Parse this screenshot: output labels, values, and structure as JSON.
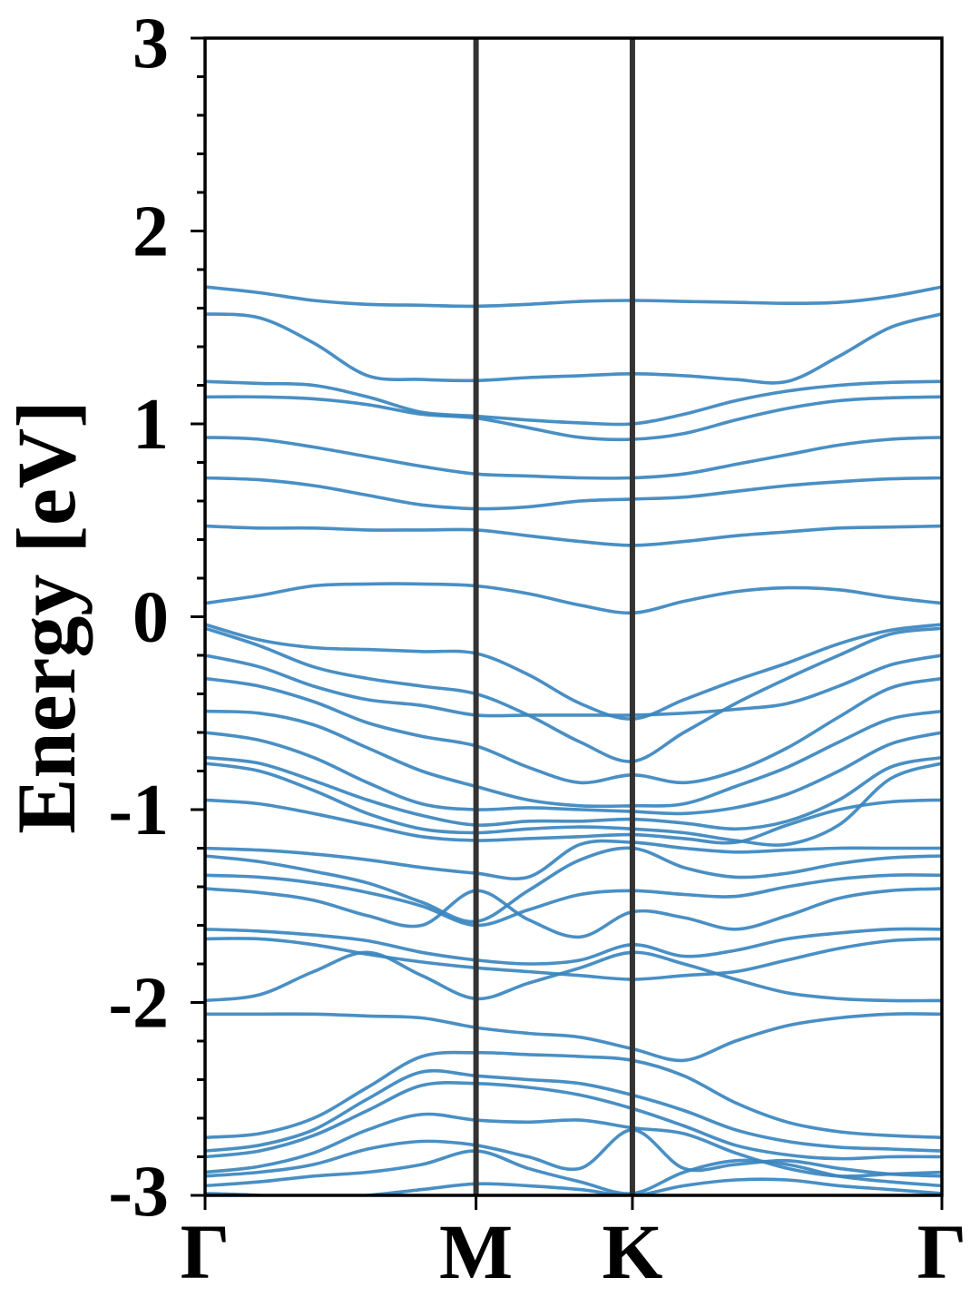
{
  "chart_data": {
    "type": "line",
    "title": "",
    "xlabel": "",
    "ylabel": "Energy [eV]",
    "ylim": [
      -3,
      3
    ],
    "xlim": [
      0,
      3.845
    ],
    "y_ticks": [
      "3",
      "2",
      "1",
      "0",
      "-1",
      "-2",
      "-3"
    ],
    "y_tick_values": [
      3,
      2,
      1,
      0,
      -1,
      -2,
      -3
    ],
    "y_minor_step": 0.2,
    "k_points": [
      {
        "label": "Γ",
        "x": 0
      },
      {
        "label": "M",
        "x": 1.414
      },
      {
        "label": "K",
        "x": 2.23
      },
      {
        "label": "Γ",
        "x": 3.845
      }
    ],
    "band_color": "#3a86bf",
    "divider_color": "#333333",
    "grid": false,
    "legend": "none",
    "x": [
      0,
      0.283,
      0.566,
      0.848,
      1.131,
      1.414,
      1.686,
      1.958,
      2.23,
      2.499,
      2.768,
      3.038,
      3.307,
      3.576,
      3.845
    ],
    "series": [
      {
        "values": [
          1.71,
          1.68,
          1.64,
          1.62,
          1.615,
          1.61,
          1.62,
          1.635,
          1.64,
          1.635,
          1.63,
          1.625,
          1.63,
          1.66,
          1.71
        ]
      },
      {
        "values": [
          1.57,
          1.55,
          1.42,
          1.25,
          1.23,
          1.225,
          1.24,
          1.25,
          1.26,
          1.25,
          1.23,
          1.22,
          1.35,
          1.5,
          1.57
        ]
      },
      {
        "values": [
          1.22,
          1.21,
          1.2,
          1.14,
          1.06,
          1.04,
          1.02,
          1.005,
          1.0,
          1.05,
          1.12,
          1.17,
          1.2,
          1.215,
          1.22
        ]
      },
      {
        "values": [
          1.14,
          1.14,
          1.13,
          1.1,
          1.05,
          1.03,
          0.98,
          0.93,
          0.92,
          0.95,
          1.02,
          1.08,
          1.12,
          1.135,
          1.14
        ]
      },
      {
        "values": [
          0.93,
          0.92,
          0.88,
          0.83,
          0.78,
          0.74,
          0.73,
          0.72,
          0.72,
          0.74,
          0.79,
          0.84,
          0.89,
          0.92,
          0.93
        ]
      },
      {
        "values": [
          0.72,
          0.71,
          0.68,
          0.63,
          0.58,
          0.56,
          0.57,
          0.6,
          0.61,
          0.62,
          0.65,
          0.68,
          0.7,
          0.715,
          0.72
        ]
      },
      {
        "values": [
          0.47,
          0.46,
          0.46,
          0.45,
          0.45,
          0.45,
          0.42,
          0.39,
          0.37,
          0.39,
          0.42,
          0.44,
          0.46,
          0.465,
          0.47
        ]
      },
      {
        "values": [
          0.07,
          0.11,
          0.16,
          0.17,
          0.17,
          0.16,
          0.12,
          0.06,
          0.02,
          0.08,
          0.13,
          0.15,
          0.14,
          0.1,
          0.07
        ]
      },
      {
        "values": [
          -0.04,
          -0.12,
          -0.16,
          -0.17,
          -0.18,
          -0.19,
          -0.3,
          -0.45,
          -0.53,
          -0.43,
          -0.33,
          -0.24,
          -0.14,
          -0.07,
          -0.04
        ]
      },
      {
        "values": [
          -0.06,
          -0.15,
          -0.26,
          -0.32,
          -0.36,
          -0.4,
          -0.51,
          -0.65,
          -0.75,
          -0.6,
          -0.45,
          -0.32,
          -0.2,
          -0.09,
          -0.06
        ]
      },
      {
        "values": [
          -0.2,
          -0.26,
          -0.36,
          -0.43,
          -0.46,
          -0.51,
          -0.51,
          -0.51,
          -0.51,
          -0.5,
          -0.48,
          -0.45,
          -0.36,
          -0.25,
          -0.2
        ]
      },
      {
        "values": [
          -0.32,
          -0.36,
          -0.44,
          -0.55,
          -0.62,
          -0.67,
          -0.78,
          -0.86,
          -0.82,
          -0.86,
          -0.8,
          -0.68,
          -0.52,
          -0.37,
          -0.32
        ]
      },
      {
        "values": [
          -0.49,
          -0.5,
          -0.56,
          -0.68,
          -0.8,
          -0.88,
          -0.95,
          -0.98,
          -0.98,
          -0.97,
          -0.88,
          -0.78,
          -0.65,
          -0.53,
          -0.49
        ]
      },
      {
        "values": [
          -0.6,
          -0.64,
          -0.73,
          -0.86,
          -0.97,
          -1.0,
          -0.99,
          -1.0,
          -1.01,
          -1.02,
          -0.99,
          -0.92,
          -0.8,
          -0.66,
          -0.6
        ]
      },
      {
        "values": [
          -0.73,
          -0.76,
          -0.85,
          -0.95,
          -1.03,
          -1.08,
          -1.06,
          -1.06,
          -1.05,
          -1.07,
          -1.1,
          -1.06,
          -0.95,
          -0.78,
          -0.73
        ]
      },
      {
        "values": [
          -0.76,
          -0.8,
          -0.9,
          -1.02,
          -1.1,
          -1.12,
          -1.1,
          -1.09,
          -1.1,
          -1.12,
          -1.16,
          -1.18,
          -1.08,
          -0.84,
          -0.76
        ]
      },
      {
        "values": [
          -0.95,
          -0.97,
          -1.02,
          -1.08,
          -1.14,
          -1.16,
          -1.15,
          -1.14,
          -1.13,
          -1.15,
          -1.17,
          -1.08,
          -1.0,
          -0.96,
          -0.95
        ]
      },
      {
        "values": [
          -1.2,
          -1.21,
          -1.23,
          -1.26,
          -1.3,
          -1.33,
          -1.35,
          -1.18,
          -1.17,
          -1.2,
          -1.22,
          -1.21,
          -1.2,
          -1.2,
          -1.2
        ]
      },
      {
        "values": [
          -1.24,
          -1.27,
          -1.32,
          -1.38,
          -1.48,
          -1.58,
          -1.42,
          -1.26,
          -1.2,
          -1.3,
          -1.35,
          -1.33,
          -1.28,
          -1.25,
          -1.24
        ]
      },
      {
        "values": [
          -1.34,
          -1.35,
          -1.38,
          -1.43,
          -1.5,
          -1.6,
          -1.52,
          -1.44,
          -1.42,
          -1.44,
          -1.45,
          -1.4,
          -1.36,
          -1.34,
          -1.34
        ]
      },
      {
        "values": [
          -1.41,
          -1.43,
          -1.47,
          -1.55,
          -1.6,
          -1.42,
          -1.57,
          -1.66,
          -1.53,
          -1.56,
          -1.62,
          -1.55,
          -1.46,
          -1.42,
          -1.41
        ]
      },
      {
        "values": [
          -1.62,
          -1.63,
          -1.65,
          -1.68,
          -1.74,
          -1.78,
          -1.8,
          -1.78,
          -1.7,
          -1.76,
          -1.73,
          -1.67,
          -1.64,
          -1.62,
          -1.62
        ]
      },
      {
        "values": [
          -1.67,
          -1.67,
          -1.7,
          -1.75,
          -1.79,
          -1.82,
          -1.84,
          -1.86,
          -1.88,
          -1.86,
          -1.84,
          -1.78,
          -1.72,
          -1.68,
          -1.67
        ]
      },
      {
        "values": [
          -1.99,
          -1.96,
          -1.84,
          -1.74,
          -1.86,
          -1.98,
          -1.9,
          -1.82,
          -1.74,
          -1.8,
          -1.88,
          -1.95,
          -1.98,
          -1.99,
          -1.99
        ]
      },
      {
        "values": [
          -2.06,
          -2.06,
          -2.06,
          -2.07,
          -2.08,
          -2.13,
          -2.16,
          -2.18,
          -2.24,
          -2.3,
          -2.2,
          -2.12,
          -2.08,
          -2.06,
          -2.06
        ]
      },
      {
        "values": [
          -2.7,
          -2.68,
          -2.6,
          -2.44,
          -2.28,
          -2.26,
          -2.27,
          -2.28,
          -2.3,
          -2.38,
          -2.52,
          -2.62,
          -2.67,
          -2.69,
          -2.7
        ]
      },
      {
        "values": [
          -2.77,
          -2.74,
          -2.66,
          -2.5,
          -2.36,
          -2.38,
          -2.4,
          -2.42,
          -2.48,
          -2.56,
          -2.66,
          -2.72,
          -2.75,
          -2.76,
          -2.77
        ]
      },
      {
        "values": [
          -2.8,
          -2.77,
          -2.69,
          -2.56,
          -2.43,
          -2.42,
          -2.44,
          -2.48,
          -2.55,
          -2.64,
          -2.74,
          -2.79,
          -2.81,
          -2.8,
          -2.8
        ]
      },
      {
        "values": [
          -2.88,
          -2.85,
          -2.78,
          -2.66,
          -2.58,
          -2.61,
          -2.62,
          -2.61,
          -2.65,
          -2.68,
          -2.78,
          -2.86,
          -2.9,
          -2.89,
          -2.88
        ]
      },
      {
        "values": [
          -2.9,
          -2.88,
          -2.84,
          -2.76,
          -2.72,
          -2.74,
          -2.8,
          -2.86,
          -2.66,
          -2.86,
          -2.84,
          -2.82,
          -2.86,
          -2.89,
          -2.9
        ]
      },
      {
        "values": [
          -2.95,
          -2.93,
          -2.9,
          -2.88,
          -2.84,
          -2.77,
          -2.86,
          -2.93,
          -2.99,
          -2.88,
          -2.82,
          -2.84,
          -2.9,
          -2.93,
          -2.95
        ]
      },
      {
        "values": [
          -2.99,
          -3.0,
          -3.02,
          -3.0,
          -2.97,
          -2.94,
          -2.95,
          -2.97,
          -3.0,
          -2.95,
          -2.92,
          -2.92,
          -2.95,
          -2.97,
          -2.99
        ]
      }
    ]
  }
}
